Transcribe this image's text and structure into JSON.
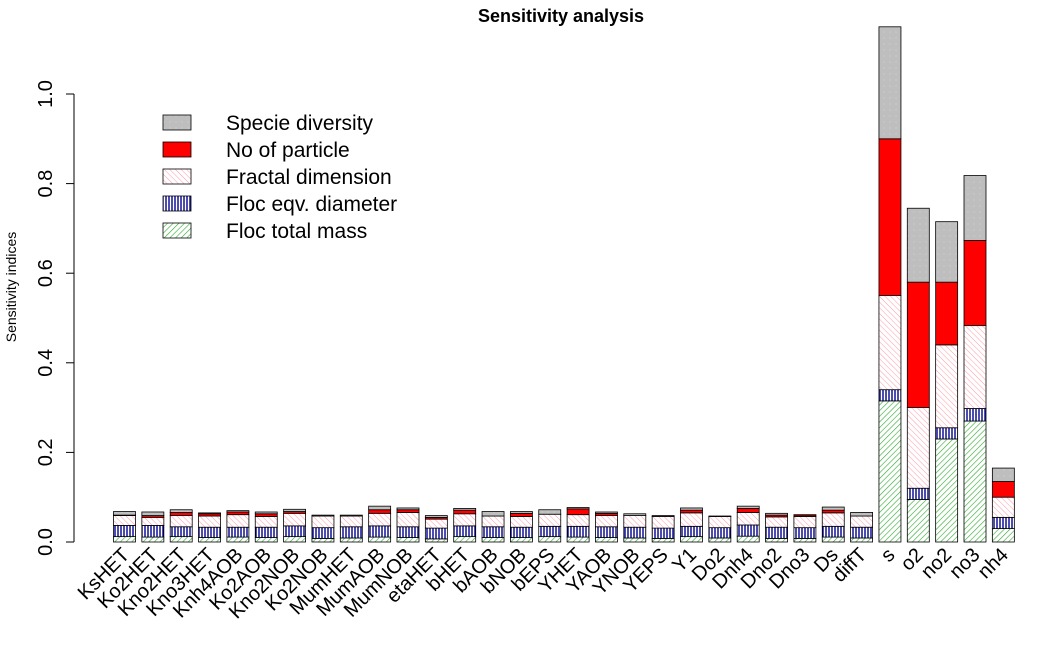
{
  "chart_data": {
    "type": "bar",
    "stacked": true,
    "title": "Sensitivity analysis",
    "xlabel": "",
    "ylabel": "Sensitivity indices",
    "ylim": [
      0,
      1.15
    ],
    "yticks": [
      "0.0",
      "0.2",
      "0.4",
      "0.6",
      "0.8",
      "1.0"
    ],
    "legend_position": "top-left",
    "categories": [
      "KsHET",
      "Ko2HET",
      "Kno2HET",
      "Kno3HET",
      "Knh4AOB",
      "Ko2AOB",
      "Kno2NOB",
      "Ko2NOB",
      "MumHET",
      "MumAOB",
      "MumNOB",
      "etaHET",
      "bHET",
      "bAOB",
      "bNOB",
      "bEPS",
      "YHET",
      "YAOB",
      "YNOB",
      "YEPS",
      "Y1",
      "Do2",
      "Dnh4",
      "Dno2",
      "Dno3",
      "Ds",
      "diffT",
      "s",
      "o2",
      "no2",
      "no3",
      "nh4"
    ],
    "series": [
      {
        "name": "Floc total mass",
        "color": "#2eaa2e",
        "pattern": "diag-green",
        "values": [
          0.012,
          0.011,
          0.012,
          0.01,
          0.011,
          0.01,
          0.012,
          0.008,
          0.009,
          0.011,
          0.01,
          0.007,
          0.012,
          0.01,
          0.01,
          0.012,
          0.011,
          0.01,
          0.009,
          0.008,
          0.012,
          0.009,
          0.013,
          0.008,
          0.008,
          0.011,
          0.009,
          0.315,
          0.095,
          0.23,
          0.27,
          0.03
        ]
      },
      {
        "name": "Floc eqv. diameter",
        "color": "#00008b",
        "pattern": "vertical-blue",
        "values": [
          0.025,
          0.026,
          0.022,
          0.023,
          0.022,
          0.023,
          0.024,
          0.024,
          0.025,
          0.025,
          0.024,
          0.024,
          0.024,
          0.024,
          0.023,
          0.023,
          0.024,
          0.024,
          0.024,
          0.023,
          0.023,
          0.023,
          0.025,
          0.025,
          0.024,
          0.024,
          0.024,
          0.025,
          0.025,
          0.025,
          0.028,
          0.025
        ]
      },
      {
        "name": "Fractal dimension",
        "color": "#ffb6c1",
        "pattern": "diag-pink",
        "values": [
          0.022,
          0.018,
          0.025,
          0.025,
          0.028,
          0.024,
          0.028,
          0.026,
          0.024,
          0.028,
          0.032,
          0.02,
          0.027,
          0.024,
          0.024,
          0.027,
          0.026,
          0.025,
          0.026,
          0.026,
          0.03,
          0.025,
          0.028,
          0.023,
          0.025,
          0.03,
          0.025,
          0.21,
          0.18,
          0.185,
          0.185,
          0.045
        ]
      },
      {
        "name": "No of particle",
        "color": "#ff0000",
        "pattern": "solid-red",
        "values": [
          0.001,
          0.004,
          0.007,
          0.005,
          0.006,
          0.006,
          0.004,
          0.0,
          0.0,
          0.008,
          0.006,
          0.004,
          0.008,
          0.0,
          0.007,
          0.0,
          0.013,
          0.005,
          0.0,
          0.0,
          0.006,
          0.0,
          0.009,
          0.004,
          0.003,
          0.006,
          0.0,
          0.35,
          0.28,
          0.14,
          0.19,
          0.035
        ]
      },
      {
        "name": "Specie diversity",
        "color": "#bebebe",
        "pattern": "grey",
        "values": [
          0.008,
          0.008,
          0.006,
          0.002,
          0.003,
          0.004,
          0.005,
          0.002,
          0.002,
          0.008,
          0.004,
          0.004,
          0.004,
          0.01,
          0.004,
          0.01,
          0.003,
          0.003,
          0.004,
          0.002,
          0.005,
          0.001,
          0.005,
          0.004,
          0.001,
          0.007,
          0.008,
          0.25,
          0.165,
          0.135,
          0.145,
          0.03
        ]
      }
    ],
    "legend_order": [
      "Specie diversity",
      "No of particle",
      "Fractal dimension",
      "Floc eqv. diameter",
      "Floc total mass"
    ],
    "grid": false
  }
}
